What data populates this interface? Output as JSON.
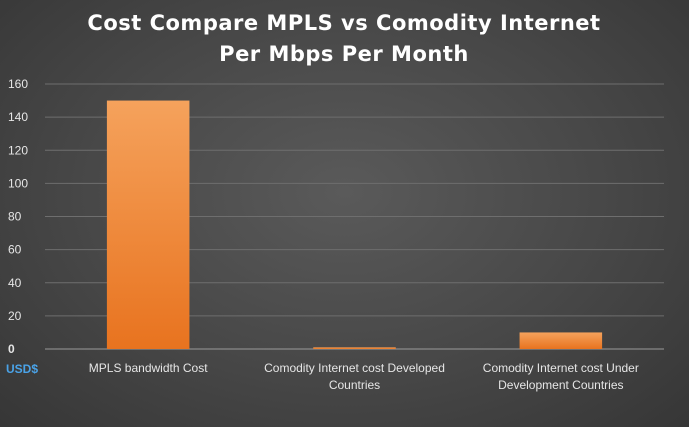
{
  "chart_data": {
    "type": "bar",
    "title_lines": [
      "Cost Compare MPLS vs Comodity Internet",
      "Per Mbps Per Month"
    ],
    "categories": [
      [
        "MPLS bandwidth Cost"
      ],
      [
        "Comodity Internet cost Developed",
        "Countries"
      ],
      [
        "Comodity Internet cost Under",
        "Development  Countries"
      ]
    ],
    "values": [
      150,
      1,
      10
    ],
    "ylim": [
      0,
      160
    ],
    "yticks": [
      0,
      20,
      40,
      60,
      80,
      100,
      120,
      140,
      160
    ],
    "unit_label": "USD$",
    "grid": true,
    "colors": {
      "bar_top": "#f5a25c",
      "bar_bottom": "#e8731f",
      "zero_tick": "#4aa3e8"
    }
  }
}
